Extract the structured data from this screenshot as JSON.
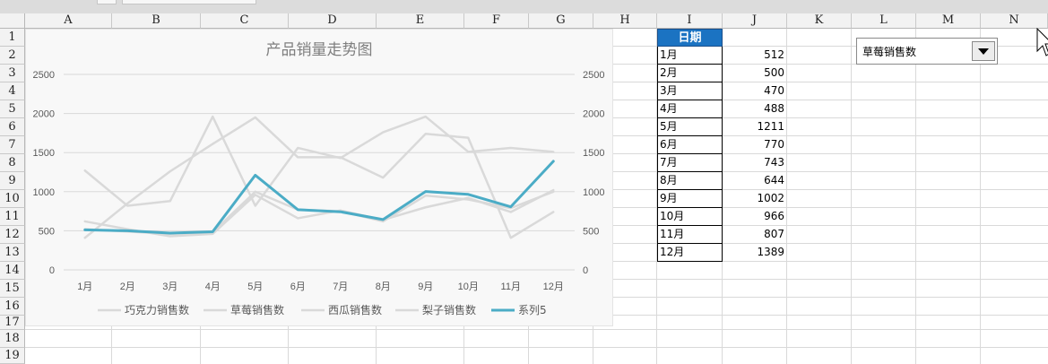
{
  "columns": [
    "A",
    "B",
    "C",
    "D",
    "E",
    "F",
    "G",
    "H",
    "I",
    "J",
    "K",
    "L",
    "M",
    "N"
  ],
  "rows": [
    "1",
    "2",
    "3",
    "4",
    "5",
    "6",
    "7",
    "8",
    "9",
    "10",
    "11",
    "12",
    "13",
    "14",
    "15",
    "16",
    "17",
    "18",
    "19"
  ],
  "table": {
    "header": "日期",
    "months": [
      "1月",
      "2月",
      "3月",
      "4月",
      "5月",
      "6月",
      "7月",
      "8月",
      "9月",
      "10月",
      "11月",
      "12月"
    ],
    "values": [
      512,
      500,
      470,
      488,
      1211,
      770,
      743,
      644,
      1002,
      966,
      807,
      1389
    ]
  },
  "dropdown": {
    "selected": "草莓销售数",
    "icon": "triangle-down-icon"
  },
  "cursor": {
    "icon": "arrow-pointer-icon"
  },
  "chart_data": {
    "type": "line",
    "title": "产品销量走势图",
    "categories": [
      "1月",
      "2月",
      "3月",
      "4月",
      "5月",
      "6月",
      "7月",
      "8月",
      "9月",
      "10月",
      "11月",
      "12月"
    ],
    "ylim": [
      0,
      2500
    ],
    "yticks": [
      "0",
      "500",
      "1000",
      "1500",
      "2000",
      "2500"
    ],
    "secondary_yticks": [
      "0",
      "500",
      "1000",
      "1500",
      "2000",
      "2500"
    ],
    "grid": true,
    "legend_position": "bottom",
    "series": [
      {
        "name": "巧克力销售数",
        "color": "#d9d9d9",
        "values": [
          1270,
          820,
          880,
          1960,
          820,
          1560,
          1430,
          1760,
          1960,
          1510,
          1560,
          1510
        ]
      },
      {
        "name": "草莓销售数",
        "color": "#d9d9d9",
        "values": [
          410,
          850,
          1260,
          1610,
          1950,
          1440,
          1440,
          1180,
          1740,
          1690,
          410,
          740
        ]
      },
      {
        "name": "西瓜销售数",
        "color": "#d9d9d9",
        "values": [
          620,
          520,
          430,
          460,
          960,
          660,
          760,
          640,
          800,
          920,
          740,
          1020
        ]
      },
      {
        "name": "梨子销售数",
        "color": "#d9d9d9",
        "values": [
          520,
          490,
          460,
          480,
          1000,
          770,
          750,
          620,
          950,
          900,
          790,
          1000
        ]
      },
      {
        "name": "系列5",
        "color": "#4bacc6",
        "values": [
          512,
          500,
          470,
          488,
          1211,
          770,
          743,
          644,
          1002,
          966,
          807,
          1389
        ]
      }
    ]
  }
}
